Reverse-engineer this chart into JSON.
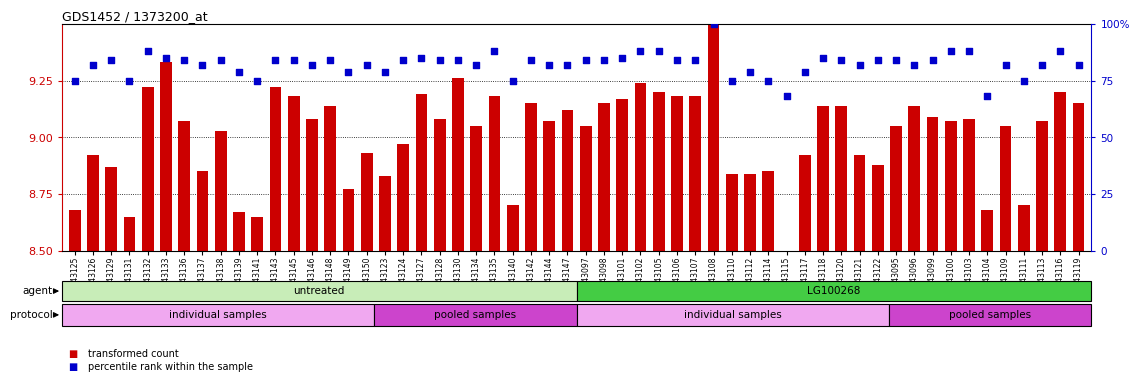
{
  "title": "GDS1452 / 1373200_at",
  "samples": [
    "GSM43125",
    "GSM43126",
    "GSM43129",
    "GSM43131",
    "GSM43132",
    "GSM43133",
    "GSM43136",
    "GSM43137",
    "GSM43138",
    "GSM43139",
    "GSM43141",
    "GSM43143",
    "GSM43145",
    "GSM43146",
    "GSM43148",
    "GSM43149",
    "GSM43150",
    "GSM43123",
    "GSM43124",
    "GSM43127",
    "GSM43128",
    "GSM43130",
    "GSM43134",
    "GSM43135",
    "GSM43140",
    "GSM43142",
    "GSM43144",
    "GSM43147",
    "GSM43097",
    "GSM43098",
    "GSM43101",
    "GSM43102",
    "GSM43105",
    "GSM43106",
    "GSM43107",
    "GSM43108",
    "GSM43110",
    "GSM43112",
    "GSM43114",
    "GSM43115",
    "GSM43117",
    "GSM43118",
    "GSM43120",
    "GSM43121",
    "GSM43122",
    "GSM43095",
    "GSM43096",
    "GSM43099",
    "GSM43100",
    "GSM43103",
    "GSM43104",
    "GSM43109",
    "GSM43111",
    "GSM43113",
    "GSM43116",
    "GSM43119"
  ],
  "red_values": [
    8.68,
    8.92,
    8.87,
    8.65,
    9.22,
    9.33,
    9.07,
    8.85,
    9.03,
    8.67,
    8.65,
    9.22,
    9.18,
    9.08,
    9.14,
    8.77,
    8.93,
    8.83,
    8.97,
    9.19,
    9.08,
    9.26,
    9.05,
    9.18,
    8.7,
    9.15,
    9.07,
    9.12,
    9.05,
    9.15,
    9.17,
    9.24,
    9.2,
    9.18,
    9.18,
    9.55,
    8.84,
    8.84,
    8.85,
    8.42,
    8.92,
    9.14,
    9.14,
    8.92,
    8.88,
    9.05,
    9.14,
    9.09,
    9.07,
    9.08,
    8.68,
    9.05,
    8.7,
    9.07,
    9.2,
    9.15
  ],
  "blue_values": [
    75,
    82,
    84,
    75,
    88,
    85,
    84,
    82,
    84,
    79,
    75,
    84,
    84,
    82,
    84,
    79,
    82,
    79,
    84,
    85,
    84,
    84,
    82,
    88,
    75,
    84,
    82,
    82,
    84,
    84,
    85,
    88,
    88,
    84,
    84,
    100,
    75,
    79,
    75,
    68,
    79,
    85,
    84,
    82,
    84,
    84,
    82,
    84,
    88,
    88,
    68,
    82,
    75,
    82,
    88,
    82
  ],
  "ylim_left": [
    8.5,
    9.5
  ],
  "ylim_right": [
    0,
    100
  ],
  "yticks_left": [
    8.5,
    8.75,
    9.0,
    9.25
  ],
  "yticks_right": [
    0,
    25,
    50,
    75,
    100
  ],
  "bar_color": "#cc0000",
  "dot_color": "#0000cc",
  "agent_groups": [
    {
      "label": "untreated",
      "start": 0,
      "end": 28,
      "color": "#c8edb8"
    },
    {
      "label": "LG100268",
      "start": 28,
      "end": 56,
      "color": "#44cc44"
    }
  ],
  "protocol_groups": [
    {
      "label": "individual samples",
      "start": 0,
      "end": 17,
      "color": "#f0a8f0"
    },
    {
      "label": "pooled samples",
      "start": 17,
      "end": 28,
      "color": "#cc44cc"
    },
    {
      "label": "individual samples",
      "start": 28,
      "end": 45,
      "color": "#f0a8f0"
    },
    {
      "label": "pooled samples",
      "start": 45,
      "end": 56,
      "color": "#cc44cc"
    }
  ],
  "legend_items": [
    {
      "label": "transformed count",
      "color": "#cc0000"
    },
    {
      "label": "percentile rank within the sample",
      "color": "#0000cc"
    }
  ]
}
